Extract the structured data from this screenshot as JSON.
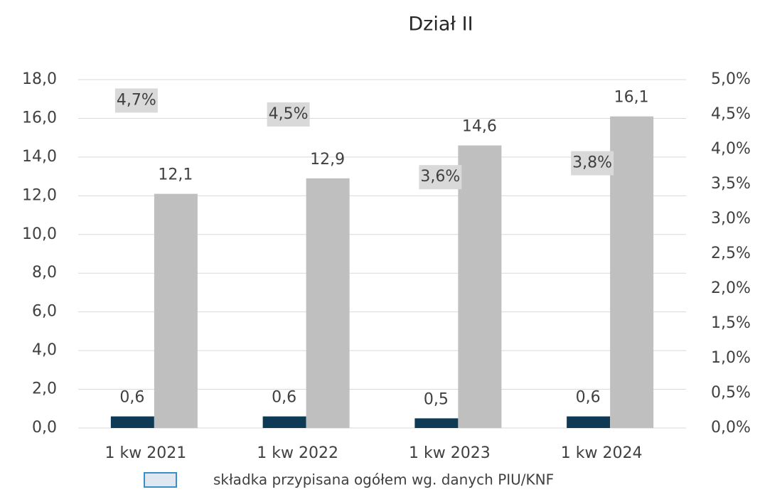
{
  "chart_data": {
    "type": "bar",
    "title": "Dział II",
    "categories": [
      "1 kw 2021",
      "1 kw 2022",
      "1 kw 2023",
      "1 kw 2024"
    ],
    "series": [
      {
        "color": "#0e3a55",
        "values": [
          0.6,
          0.6,
          0.5,
          0.6
        ],
        "value_labels": [
          "0,6",
          "0,6",
          "0,5",
          "0,6"
        ]
      },
      {
        "name": "składka przypisana ogółem wg. danych PIU/KNF",
        "color": "#bfbfbf",
        "values": [
          12.1,
          12.9,
          14.6,
          16.1
        ],
        "value_labels": [
          "12,1",
          "12,9",
          "14,6",
          "16,1"
        ]
      },
      {
        "axis": "y2",
        "color": "#d9d9d9",
        "values": [
          4.7,
          4.5,
          3.6,
          3.8
        ],
        "value_labels": [
          "4,7%",
          "4,5%",
          "3,6%",
          "3,8%"
        ]
      }
    ],
    "ylim": [
      0,
      18
    ],
    "yticks": [
      {
        "value": 0,
        "label": "0,0"
      },
      {
        "value": 2,
        "label": "2,0"
      },
      {
        "value": 4,
        "label": "4,0"
      },
      {
        "value": 6,
        "label": "6,0"
      },
      {
        "value": 8,
        "label": "8,0"
      },
      {
        "value": 10,
        "label": "10,0"
      },
      {
        "value": 12,
        "label": "12,0"
      },
      {
        "value": 14,
        "label": "14,0"
      },
      {
        "value": 16,
        "label": "16,0"
      },
      {
        "value": 18,
        "label": "18,0"
      }
    ],
    "y2lim": [
      0,
      5
    ],
    "y2ticks": [
      {
        "value": 0,
        "label": "0,0%"
      },
      {
        "value": 0.5,
        "label": "0,5%"
      },
      {
        "value": 1,
        "label": "1,0%"
      },
      {
        "value": 1.5,
        "label": "1,5%"
      },
      {
        "value": 2,
        "label": "2,0%"
      },
      {
        "value": 2.5,
        "label": "2,5%"
      },
      {
        "value": 3,
        "label": "3,0%"
      },
      {
        "value": 3.5,
        "label": "3,5%"
      },
      {
        "value": 4,
        "label": "4,0%"
      },
      {
        "value": 4.5,
        "label": "4,5%"
      },
      {
        "value": 5,
        "label": "5,0%"
      }
    ],
    "grid": true
  }
}
